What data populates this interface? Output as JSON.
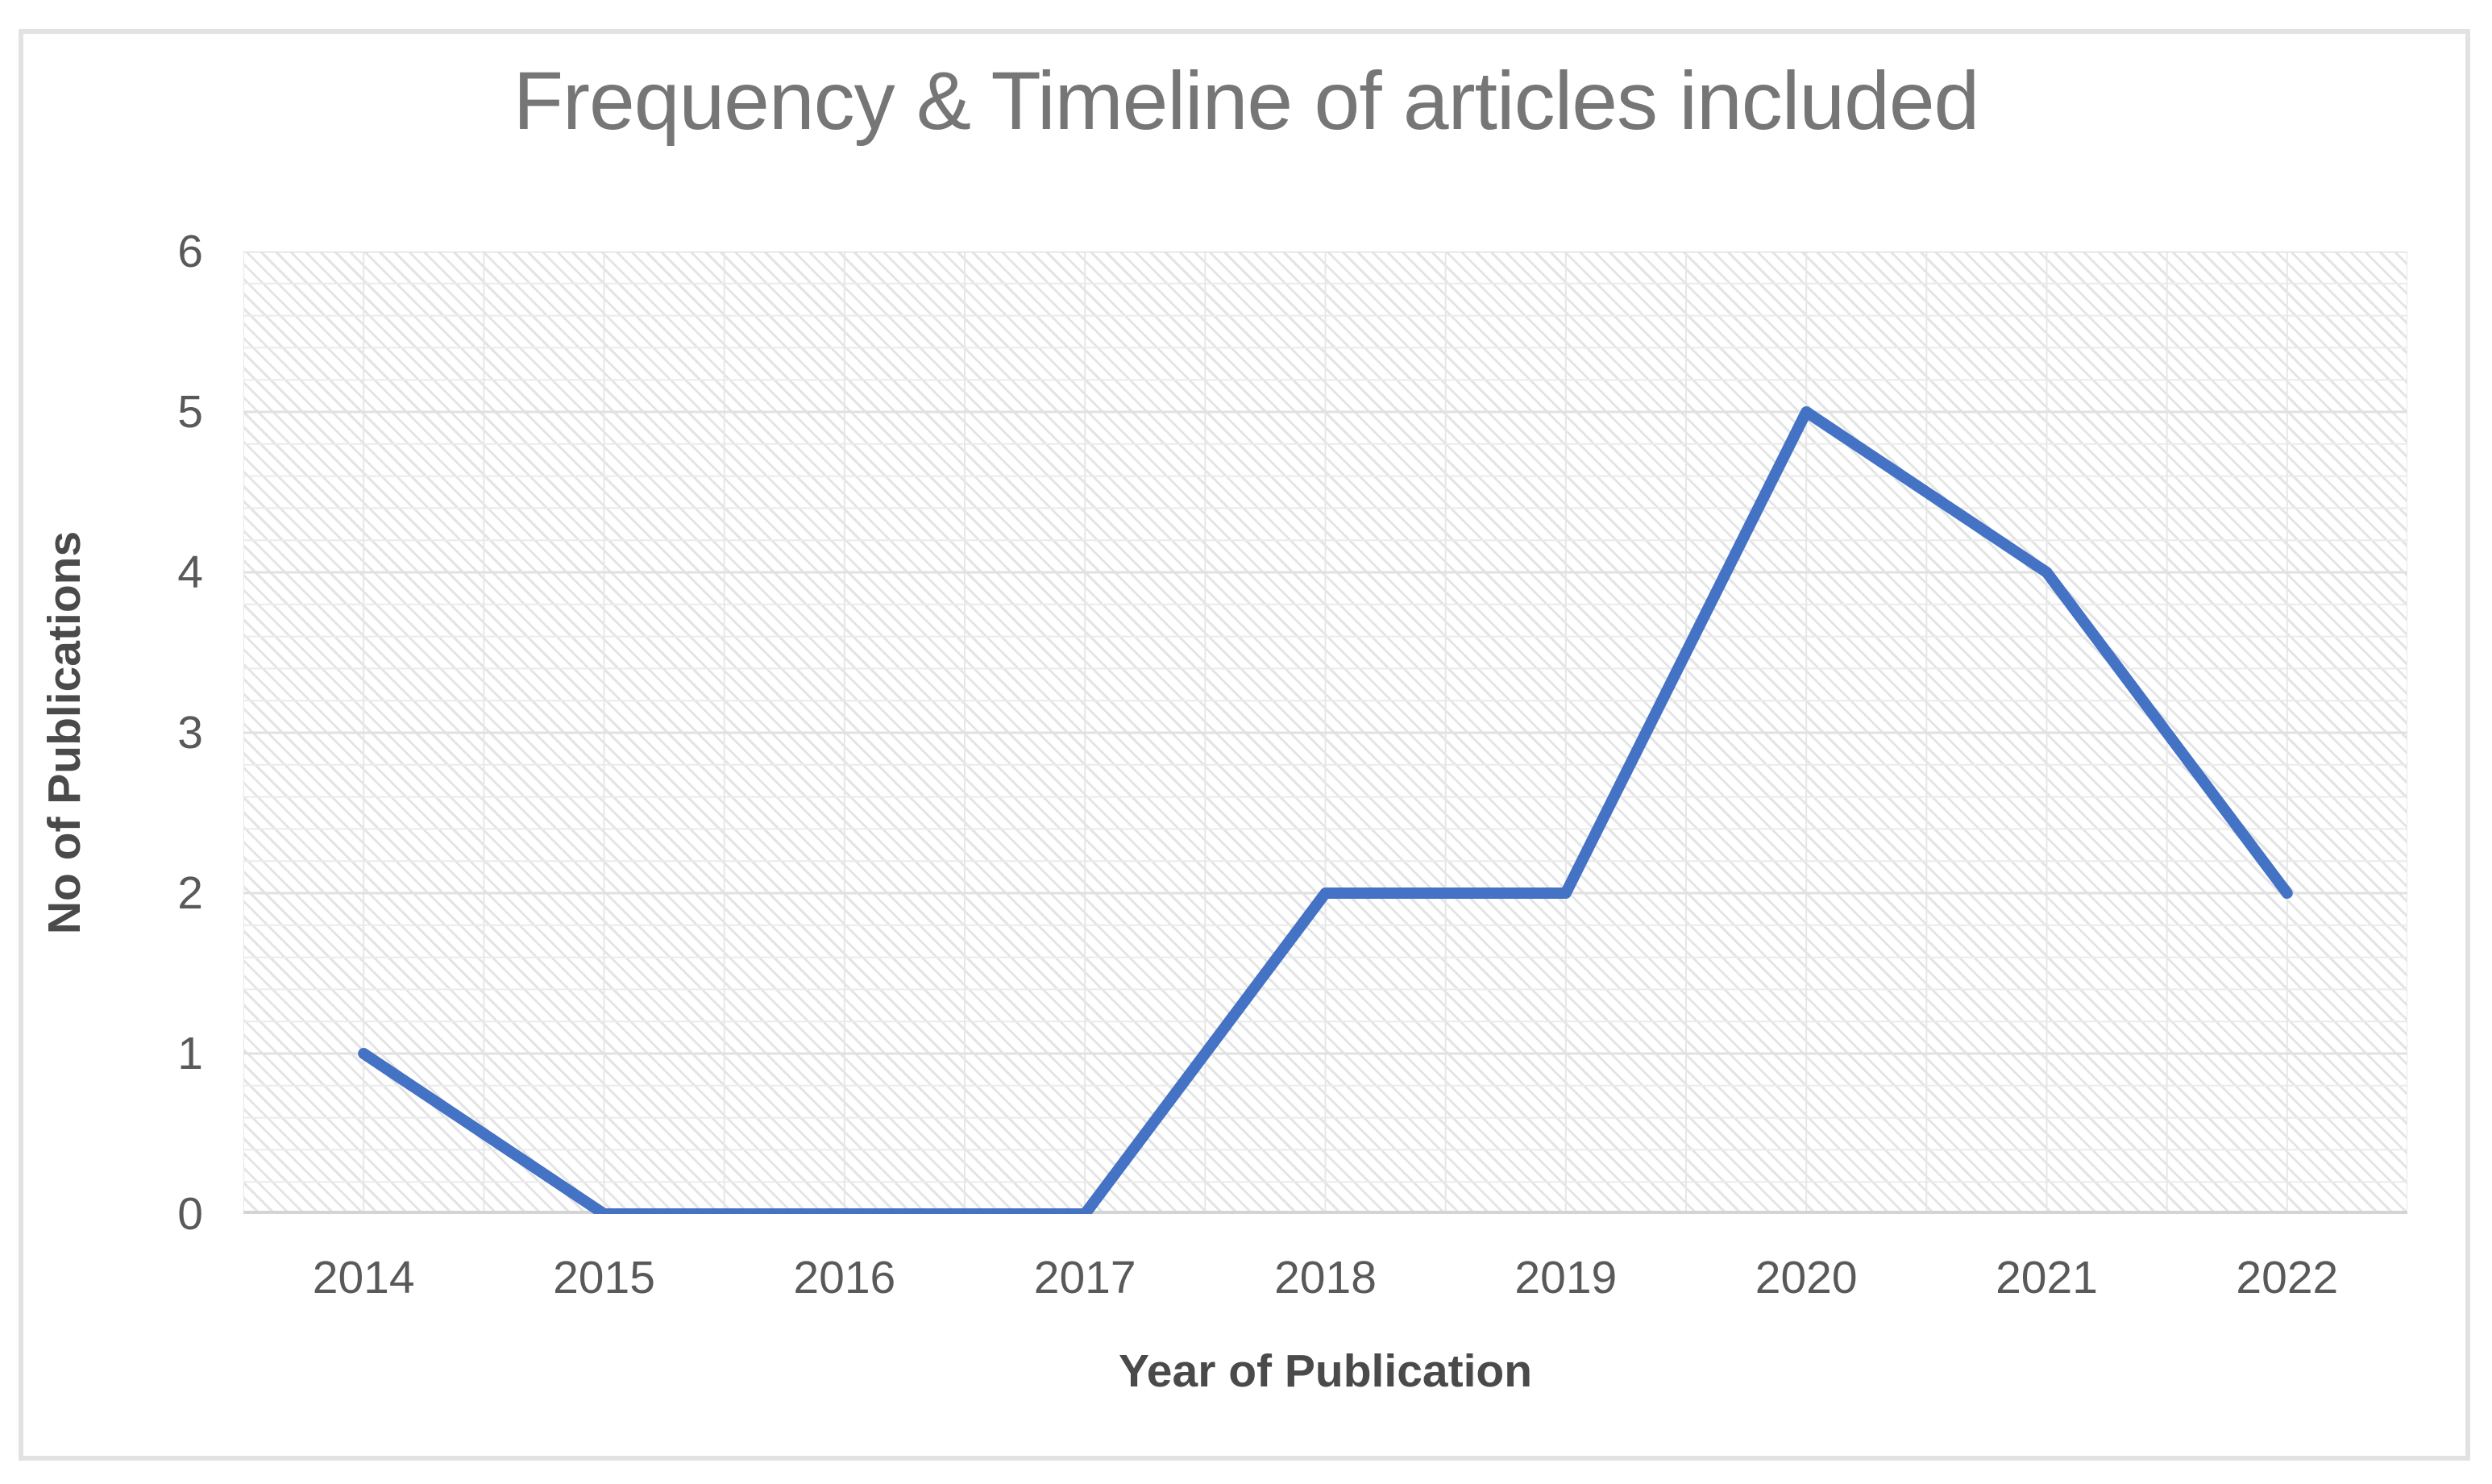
{
  "chart_data": {
    "type": "line",
    "title": "Frequency & Timeline of articles included",
    "xlabel": "Year of Publication",
    "ylabel": "No of Publications",
    "categories": [
      "2014",
      "2015",
      "2016",
      "2017",
      "2018",
      "2019",
      "2020",
      "2021",
      "2022"
    ],
    "series": [
      {
        "name": "No of Publications",
        "values": [
          1,
          0,
          0,
          0,
          2,
          2,
          5,
          4,
          2
        ]
      }
    ],
    "ylim": [
      0,
      6
    ],
    "yticks": [
      6,
      5,
      4,
      3,
      2,
      1,
      0
    ],
    "grid": true,
    "legend_position": "none",
    "line_color": "#4472C4",
    "plot_area_fill": "light-diagonal-hatch"
  },
  "colors": {
    "title_text": "#767676",
    "tick_text": "#595959",
    "axis_title_text": "#4a4a4a",
    "gridline_major": "#e1e1e1",
    "gridline_minor": "#ebebeb",
    "gridline_vertical": "#e7e7e7",
    "axis_line": "#d4d4d4",
    "frame_border": "#e2e2e2"
  }
}
